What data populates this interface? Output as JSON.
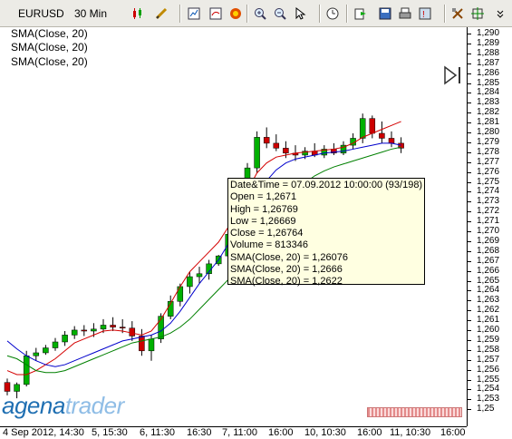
{
  "toolbar": {
    "symbol": "EURUSD",
    "timeframe": "30 Min",
    "icons": [
      "candle-type-icon",
      "draw-pencil-icon",
      "chart-window-icon",
      "indicator-icon",
      "template-icon",
      "zoom-in-icon",
      "zoom-out-icon",
      "pointer-icon",
      "clock-icon",
      "export-icon",
      "save-icon",
      "print-icon",
      "help-icon",
      "strategy-icon",
      "crosshair-icon"
    ]
  },
  "indicators": [
    "SMA(Close, 20)",
    "SMA(Close, 20)",
    "SMA(Close, 20)"
  ],
  "y_axis": {
    "labels": [
      "1,290",
      "1,289",
      "1,288",
      "1,287",
      "1,286",
      "1,285",
      "1,284",
      "1,283",
      "1,282",
      "1,281",
      "1,280",
      "1,279",
      "1,278",
      "1,277",
      "1,276",
      "1,275",
      "1,274",
      "1,273",
      "1,272",
      "1,271",
      "1,270",
      "1,269",
      "1,268",
      "1,267",
      "1,266",
      "1,265",
      "1,264",
      "1,263",
      "1,262",
      "1,261",
      "1,260",
      "1,259",
      "1,258",
      "1,257",
      "1,256",
      "1,255",
      "1,254",
      "1,253",
      "1,25"
    ]
  },
  "x_axis": {
    "labels": [
      "4 Sep 2012, 14:30",
      "5, 15:30",
      "6, 11:30",
      "16:30",
      "7, 11:00",
      "16:00",
      "10, 10:30",
      "16:00",
      "11, 10:30",
      "16:00"
    ]
  },
  "tooltip": {
    "lines": [
      "Date&Time = 07.09.2012 10:00:00 (93/198)",
      "Open = 1,2671",
      "High = 1,26769",
      "Low = 1,26669",
      "Close = 1,26764",
      "Volume = 813346",
      "SMA(Close, 20) = 1,26076",
      "SMA(Close, 20) = 1,2666",
      "SMA(Close, 20) = 1,2622"
    ]
  },
  "logo": {
    "part1": "agena",
    "part2": "trader"
  },
  "colors": {
    "up": "#00b000",
    "down": "#cc0000",
    "sma_red": "#d40000",
    "sma_blue": "#0000cc",
    "sma_green": "#008000"
  },
  "chart_data": {
    "type": "candlestick",
    "symbol": "EURUSD",
    "timeframe": "30 Min",
    "ylim": [
      1.2525,
      1.2905
    ],
    "candles": [
      [
        1.2548,
        1.2552,
        1.2535,
        1.2539
      ],
      [
        1.2539,
        1.2548,
        1.2532,
        1.2546
      ],
      [
        1.2546,
        1.258,
        1.2544,
        1.2575
      ],
      [
        1.2575,
        1.2583,
        1.257,
        1.2578
      ],
      [
        1.2578,
        1.2586,
        1.2576,
        1.2583
      ],
      [
        1.2583,
        1.2593,
        1.258,
        1.2589
      ],
      [
        1.2589,
        1.26,
        1.2585,
        1.2596
      ],
      [
        1.2596,
        1.2605,
        1.2592,
        1.2601
      ],
      [
        1.2601,
        1.2606,
        1.2595,
        1.26
      ],
      [
        1.26,
        1.2608,
        1.2594,
        1.2602
      ],
      [
        1.2602,
        1.2612,
        1.2598,
        1.2606
      ],
      [
        1.2606,
        1.2614,
        1.26,
        1.2604
      ],
      [
        1.2604,
        1.2612,
        1.2598,
        1.2603
      ],
      [
        1.2603,
        1.261,
        1.259,
        1.2595
      ],
      [
        1.2595,
        1.2602,
        1.2575,
        1.258
      ],
      [
        1.258,
        1.2596,
        1.257,
        1.2592
      ],
      [
        1.2592,
        1.2618,
        1.2588,
        1.2615
      ],
      [
        1.2615,
        1.2636,
        1.2612,
        1.263
      ],
      [
        1.263,
        1.2648,
        1.2625,
        1.2645
      ],
      [
        1.2645,
        1.266,
        1.2638,
        1.2655
      ],
      [
        1.2655,
        1.2665,
        1.2648,
        1.2658
      ],
      [
        1.2658,
        1.2672,
        1.2652,
        1.2668
      ],
      [
        1.2668,
        1.2677,
        1.2666,
        1.2676
      ],
      [
        1.2676,
        1.27,
        1.2672,
        1.2698
      ],
      [
        1.2698,
        1.2738,
        1.2695,
        1.2735
      ],
      [
        1.2735,
        1.277,
        1.273,
        1.2765
      ],
      [
        1.2765,
        1.2802,
        1.276,
        1.2796
      ],
      [
        1.2796,
        1.2806,
        1.2785,
        1.279
      ],
      [
        1.279,
        1.2799,
        1.2782,
        1.2785
      ],
      [
        1.2785,
        1.2792,
        1.2775,
        1.278
      ],
      [
        1.278,
        1.2788,
        1.2772,
        1.2778
      ],
      [
        1.2778,
        1.2786,
        1.2774,
        1.2782
      ],
      [
        1.2782,
        1.279,
        1.2776,
        1.2778
      ],
      [
        1.2778,
        1.2788,
        1.2775,
        1.2784
      ],
      [
        1.2784,
        1.279,
        1.2778,
        1.278
      ],
      [
        1.278,
        1.2792,
        1.2778,
        1.2788
      ],
      [
        1.2788,
        1.28,
        1.2784,
        1.2795
      ],
      [
        1.2795,
        1.282,
        1.279,
        1.2815
      ],
      [
        1.2815,
        1.2818,
        1.2795,
        1.28
      ],
      [
        1.28,
        1.2812,
        1.279,
        1.2795
      ],
      [
        1.2795,
        1.2802,
        1.2786,
        1.279
      ],
      [
        1.279,
        1.2796,
        1.278,
        1.2785
      ]
    ],
    "series": [
      {
        "values": [
          1.256,
          1.2556,
          1.2556,
          1.256,
          1.2566,
          1.2572,
          1.258,
          1.2588,
          1.2592,
          1.2596,
          1.26,
          1.2601,
          1.26,
          1.2598,
          1.2596,
          1.26,
          1.2612,
          1.2628,
          1.2645,
          1.266,
          1.267,
          1.268,
          1.269,
          1.2705,
          1.2722,
          1.2742,
          1.276,
          1.277,
          1.2776,
          1.2778,
          1.278,
          1.2781,
          1.2782,
          1.2783,
          1.2784,
          1.2786,
          1.279,
          1.2796,
          1.28,
          1.2804,
          1.2808,
          1.2812
        ]
      },
      {
        "values": [
          1.259,
          1.2582,
          1.2575,
          1.257,
          1.2566,
          1.2564,
          1.2566,
          1.257,
          1.2574,
          1.2578,
          1.2582,
          1.2586,
          1.259,
          1.2592,
          1.2594,
          1.2596,
          1.26,
          1.2608,
          1.262,
          1.2634,
          1.2648,
          1.266,
          1.2672,
          1.2688,
          1.2704,
          1.272,
          1.2738,
          1.2752,
          1.2763,
          1.277,
          1.2774,
          1.2776,
          1.2778,
          1.278,
          1.2781,
          1.2782,
          1.2784,
          1.2786,
          1.2788,
          1.279,
          1.279,
          1.2788
        ]
      },
      {
        "values": [
          1.2575,
          1.2572,
          1.2566,
          1.256,
          1.2558,
          1.2558,
          1.256,
          1.2564,
          1.2568,
          1.2572,
          1.2576,
          1.258,
          1.2584,
          1.2588,
          1.259,
          1.2592,
          1.2594,
          1.2598,
          1.2604,
          1.2612,
          1.2622,
          1.2632,
          1.2642,
          1.2652,
          1.2664,
          1.2678,
          1.2692,
          1.2706,
          1.272,
          1.2732,
          1.2742,
          1.275,
          1.2757,
          1.2762,
          1.2766,
          1.2769,
          1.2772,
          1.2775,
          1.2778,
          1.2781,
          1.2784,
          1.2786
        ]
      }
    ]
  }
}
